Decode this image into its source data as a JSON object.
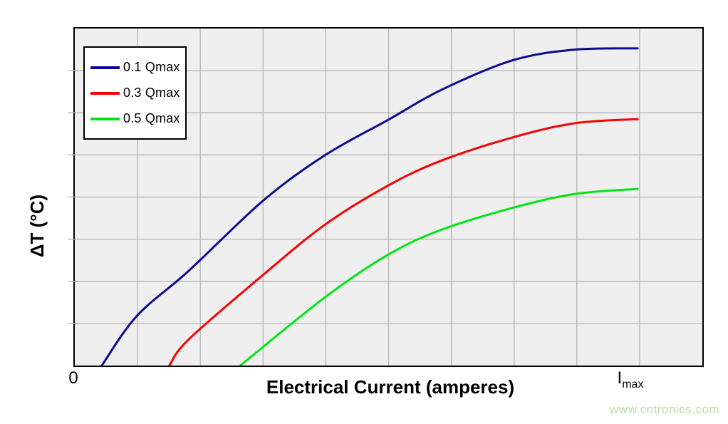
{
  "watermark": {
    "text": "www.cntronics.com",
    "color": "#b5dfa5"
  },
  "colors": {
    "page_bg": "#ffffff",
    "plot_bg": "#efefef",
    "grid": "#b3b3b3",
    "axis_border": "#000000",
    "text": "#000000"
  },
  "chart_data": {
    "type": "line",
    "title": "",
    "xlabel": "Electrical Current (amperes)",
    "ylabel": "ΔT (°C)",
    "x_axis": {
      "zero_label": "0",
      "max_label_base": "I",
      "max_label_sub": "max"
    },
    "value_convention": "x = fraction of Imax; y = ΔT as % of the 0.1 Qmax curve maximum (y axis has no numeric ticks)",
    "layout": {
      "grid_columns": 10,
      "grid_rows": 8,
      "grid_on": true,
      "legend_position": "top-left",
      "x_imax_plot_fraction": 0.897,
      "y_max_plot_fraction": 0.941,
      "line_width": 3
    },
    "series": [
      {
        "name": "0.1 Qmax",
        "color": "#0b0b90",
        "points": [
          [
            0.048,
            0
          ],
          [
            0.11,
            15.6
          ],
          [
            0.202,
            29.8
          ],
          [
            0.334,
            51.9
          ],
          [
            0.445,
            66.4
          ],
          [
            0.557,
            77.5
          ],
          [
            0.651,
            86.9
          ],
          [
            0.777,
            96.2
          ],
          [
            0.888,
            99.6
          ],
          [
            1.0,
            100
          ]
        ]
      },
      {
        "name": "0.3 Qmax",
        "color": "#fb0000",
        "points": [
          [
            0.168,
            0
          ],
          [
            0.202,
            8.2
          ],
          [
            0.334,
            28.5
          ],
          [
            0.445,
            44.5
          ],
          [
            0.557,
            56.8
          ],
          [
            0.651,
            64.6
          ],
          [
            0.777,
            71.9
          ],
          [
            0.888,
            76.4
          ],
          [
            1.0,
            77.7
          ]
        ]
      },
      {
        "name": "0.5 Qmax",
        "color": "#00e615",
        "points": [
          [
            0.294,
            0
          ],
          [
            0.445,
            21.6
          ],
          [
            0.557,
            35.0
          ],
          [
            0.651,
            42.8
          ],
          [
            0.777,
            49.7
          ],
          [
            0.888,
            54.1
          ],
          [
            1.0,
            55.7
          ]
        ]
      }
    ]
  }
}
